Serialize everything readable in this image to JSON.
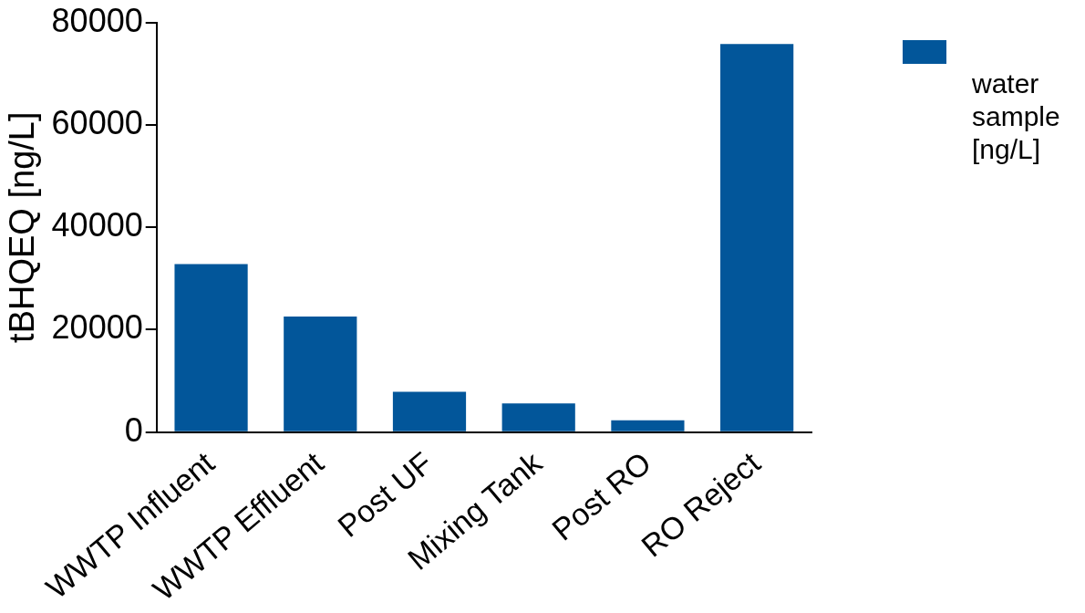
{
  "chart_data": {
    "type": "bar",
    "ylabel": "tBHQEQ [ng/L]",
    "categories": [
      "WWTP Influent",
      "WWTP Effluent",
      "Post UF",
      "Mixing Tank",
      "Post RO",
      "RO Reject"
    ],
    "series": [
      {
        "name": "water sample [ng/L]",
        "color": "#02569a",
        "values": [
          32800,
          22600,
          7900,
          5600,
          2300,
          75800
        ]
      }
    ],
    "ylim": [
      0,
      80000
    ],
    "yticks": [
      0,
      20000,
      40000,
      60000,
      80000
    ],
    "grid": false,
    "legend": "top right"
  }
}
